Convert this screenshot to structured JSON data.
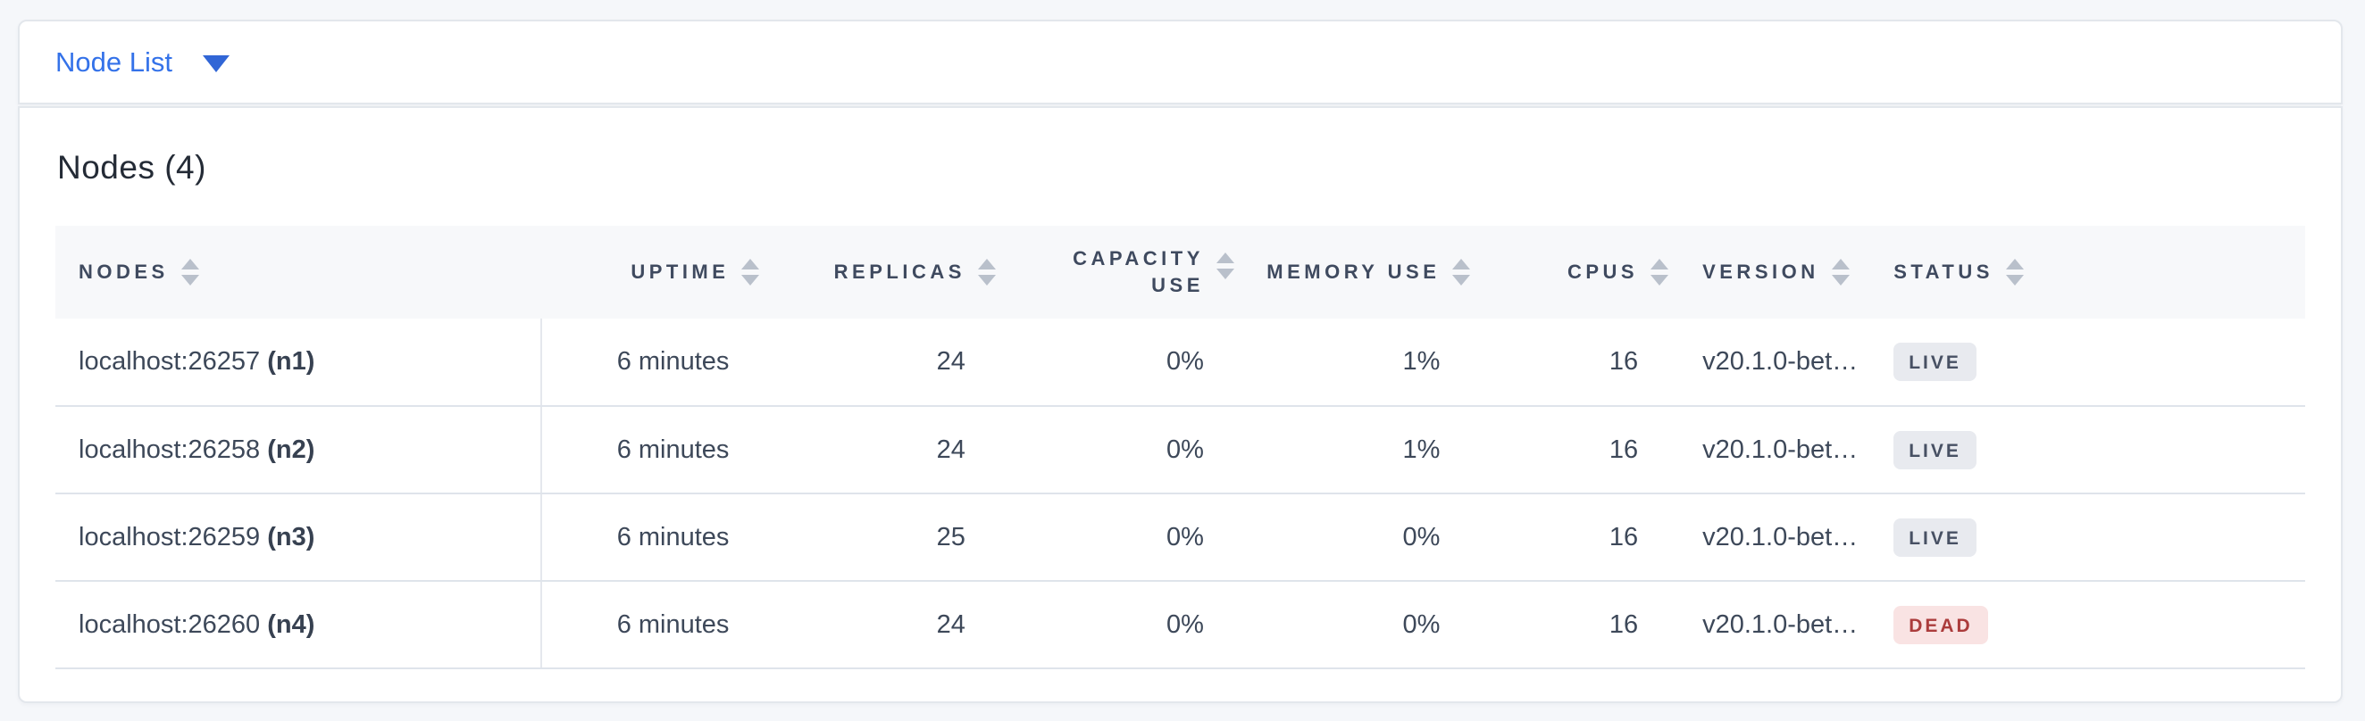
{
  "topbar": {
    "dropdown_label": "Node List"
  },
  "card": {
    "title": "Nodes (4)"
  },
  "table": {
    "columns": [
      {
        "key": "nodes",
        "label": "NODES",
        "align": "left"
      },
      {
        "key": "uptime",
        "label": "UPTIME",
        "align": "right"
      },
      {
        "key": "replicas",
        "label": "REPLICAS",
        "align": "right"
      },
      {
        "key": "capacity-use",
        "label": "CAPACITY USE",
        "align": "right",
        "two_line": true
      },
      {
        "key": "memory-use",
        "label": "MEMORY USE",
        "align": "right"
      },
      {
        "key": "cpus",
        "label": "CPUS",
        "align": "right"
      },
      {
        "key": "version",
        "label": "VERSION",
        "align": "left"
      },
      {
        "key": "status",
        "label": "STATUS",
        "align": "left"
      }
    ],
    "rows": [
      {
        "address": "localhost:26257",
        "node_id": "(n1)",
        "uptime": "6 minutes",
        "replicas": "24",
        "capacity_use": "0%",
        "memory_use": "1%",
        "cpus": "16",
        "version": "v20.1.0-bet…",
        "status": "LIVE"
      },
      {
        "address": "localhost:26258",
        "node_id": "(n2)",
        "uptime": "6 minutes",
        "replicas": "24",
        "capacity_use": "0%",
        "memory_use": "1%",
        "cpus": "16",
        "version": "v20.1.0-bet…",
        "status": "LIVE"
      },
      {
        "address": "localhost:26259",
        "node_id": "(n3)",
        "uptime": "6 minutes",
        "replicas": "25",
        "capacity_use": "0%",
        "memory_use": "0%",
        "cpus": "16",
        "version": "v20.1.0-bet…",
        "status": "LIVE"
      },
      {
        "address": "localhost:26260",
        "node_id": "(n4)",
        "uptime": "6 minutes",
        "replicas": "24",
        "capacity_use": "0%",
        "memory_use": "0%",
        "cpus": "16",
        "version": "v20.1.0-bet…",
        "status": "DEAD"
      }
    ]
  },
  "statuses": {
    "LIVE": {
      "bg": "#e8eaef",
      "fg": "#475063"
    },
    "DEAD": {
      "bg": "#f9e3e3",
      "fg": "#ab3c3c"
    }
  },
  "colors": {
    "accent_blue": "#3472e9",
    "page_background": "#f5f7fa",
    "header_background": "#f7f8fa",
    "border": "#e3e7ec"
  },
  "icons": {
    "dropdown_caret": "chevron-down-icon",
    "sort": "sort-arrows-icon"
  }
}
